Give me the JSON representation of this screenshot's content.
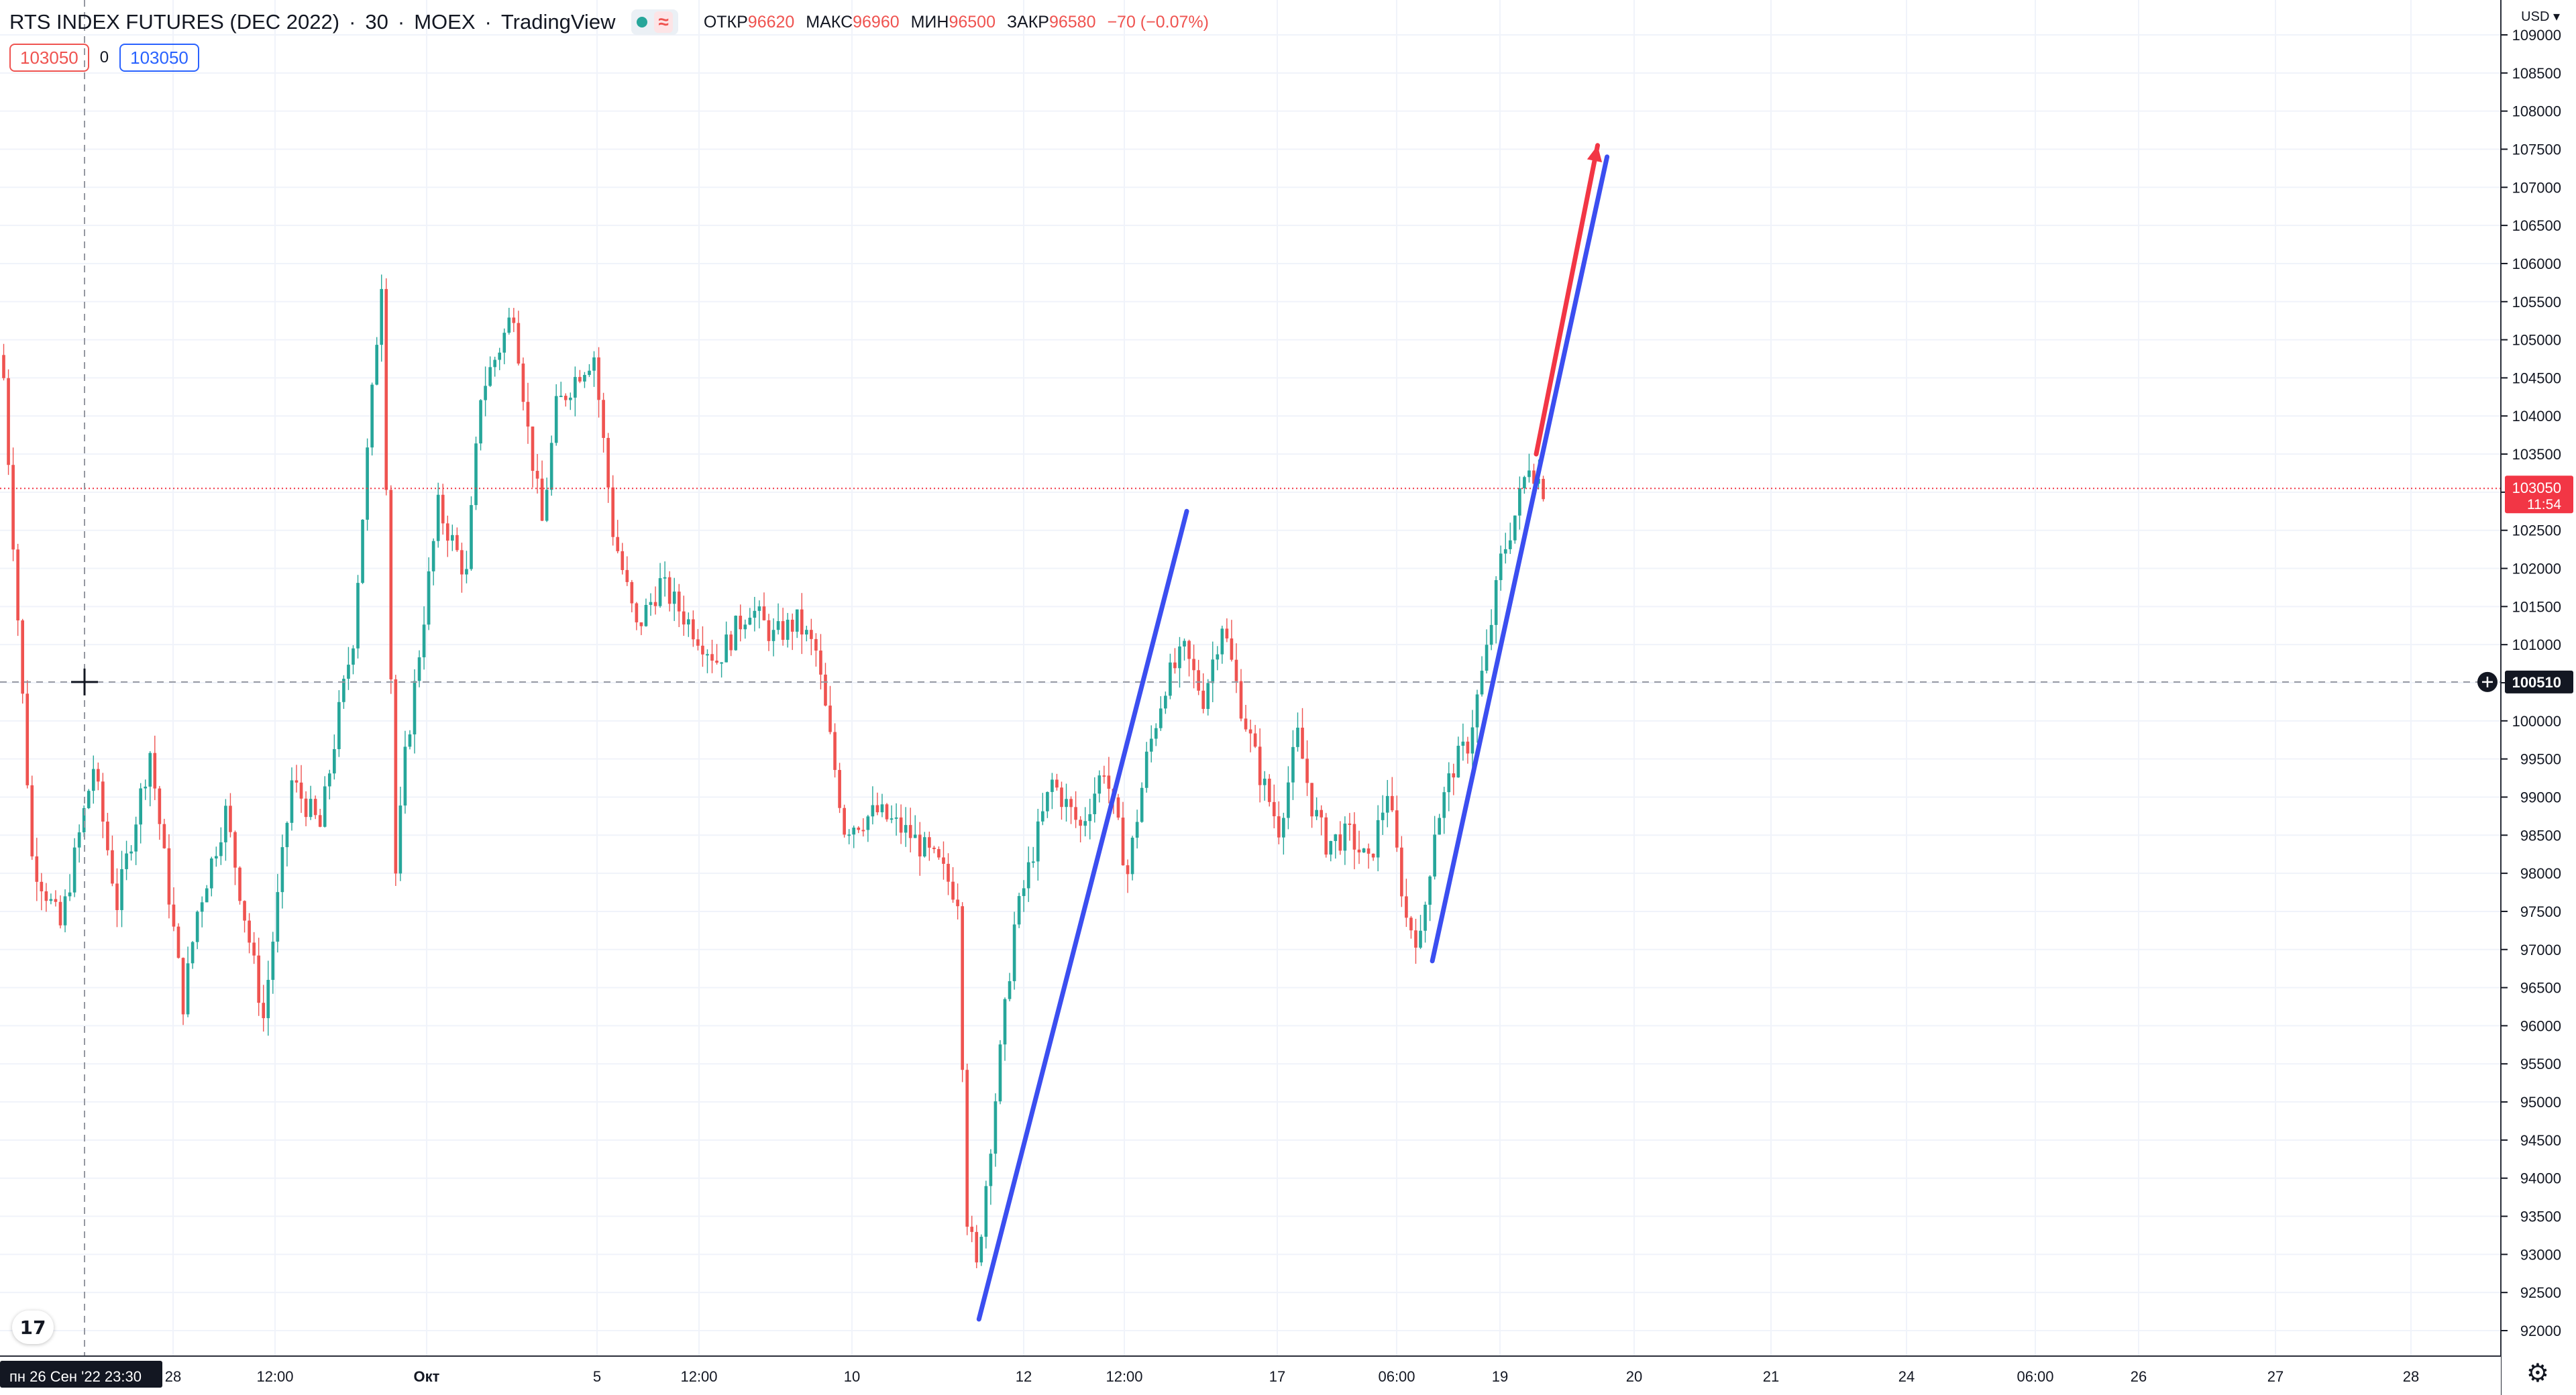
{
  "header": {
    "symbol": "RTS INDEX FUTURES (DEC 2022)",
    "interval": "30",
    "exchange": "MOEX",
    "source": "TradingView",
    "sep": "·",
    "ohlc": {
      "open_label": "ОТКР",
      "open": "96620",
      "high_label": "МАКС",
      "high": "96960",
      "low_label": "МИН",
      "low": "96500",
      "close_label": "ЗАКР",
      "close": "96580",
      "change": "−70 (−0.07%)"
    }
  },
  "order_bar": {
    "sell": "103050",
    "spread": "0",
    "buy": "103050"
  },
  "currency": "USD",
  "price_axis": {
    "min": 91700,
    "max": 109050,
    "step": 500,
    "labels": [
      "109000",
      "108500",
      "108000",
      "107500",
      "107000",
      "106500",
      "106000",
      "105500",
      "105000",
      "104500",
      "104000",
      "103500",
      "103000",
      "102500",
      "102000",
      "101500",
      "101000",
      "100500",
      "100000",
      "99500",
      "99000",
      "98500",
      "98000",
      "97500",
      "97000",
      "96500",
      "96000",
      "95500",
      "95000",
      "94500",
      "94000",
      "93500",
      "93000",
      "92500",
      "92000"
    ]
  },
  "last_price": {
    "price": 103050,
    "label": "103050",
    "countdown": "11:54",
    "color": "#f23645"
  },
  "crosshair": {
    "price": 100510,
    "price_label": "100510",
    "time_label": "пн 26 Сен '22   23:30"
  },
  "time_axis": {
    "labels": [
      "28",
      "12:00",
      "Окт",
      "5",
      "12:00",
      "10",
      "12",
      "12:00",
      "17",
      "06:00",
      "19",
      "20",
      "21",
      "24",
      "06:00",
      "26",
      "27",
      "28"
    ],
    "bold": [
      false,
      false,
      true,
      false,
      false,
      false,
      false,
      false,
      false,
      false,
      false,
      false,
      false,
      false,
      false,
      false,
      false,
      false
    ]
  },
  "colors": {
    "up": "#26a69a",
    "down": "#ef5350",
    "trend_blue": "#3b4ef0",
    "trend_red": "#f23645",
    "grid": "#f0f3fa",
    "text": "#131722"
  },
  "chart_data": {
    "type": "candlestick",
    "title": "RTS INDEX FUTURES (DEC 2022)",
    "interval": "30",
    "x_range": [
      "2022-09-26",
      "2022-10-28"
    ],
    "ylim": [
      91700,
      109050
    ],
    "close_path": [
      [
        0,
        104500
      ],
      [
        6,
        98200
      ],
      [
        12,
        97300
      ],
      [
        19,
        99400
      ],
      [
        24,
        97600
      ],
      [
        31,
        99600
      ],
      [
        38,
        96300
      ],
      [
        41,
        97500
      ],
      [
        47,
        98800
      ],
      [
        55,
        96100
      ],
      [
        61,
        99200
      ],
      [
        67,
        98600
      ],
      [
        71,
        100100
      ],
      [
        74,
        101100
      ],
      [
        77,
        103500
      ],
      [
        80,
        105800
      ],
      [
        83,
        98000
      ],
      [
        85,
        99500
      ],
      [
        92,
        102800
      ],
      [
        98,
        101900
      ],
      [
        101,
        104300
      ],
      [
        105,
        104900
      ],
      [
        108,
        105400
      ],
      [
        111,
        103800
      ],
      [
        114,
        102600
      ],
      [
        117,
        104100
      ],
      [
        122,
        104600
      ],
      [
        125,
        104800
      ],
      [
        129,
        102500
      ],
      [
        134,
        101200
      ],
      [
        139,
        101800
      ],
      [
        145,
        101300
      ],
      [
        151,
        100800
      ],
      [
        158,
        101500
      ],
      [
        163,
        101100
      ],
      [
        168,
        101300
      ],
      [
        172,
        100900
      ],
      [
        178,
        98600
      ],
      [
        185,
        98800
      ],
      [
        192,
        98500
      ],
      [
        198,
        98100
      ],
      [
        202,
        97700
      ],
      [
        204,
        93500
      ],
      [
        206,
        92800
      ],
      [
        209,
        94500
      ],
      [
        214,
        97300
      ],
      [
        218,
        98300
      ],
      [
        222,
        99200
      ],
      [
        228,
        98600
      ],
      [
        233,
        99400
      ],
      [
        238,
        98000
      ],
      [
        242,
        99500
      ],
      [
        246,
        100500
      ],
      [
        250,
        100900
      ],
      [
        254,
        100300
      ],
      [
        258,
        101300
      ],
      [
        262,
        100200
      ],
      [
        266,
        99300
      ],
      [
        270,
        98600
      ],
      [
        274,
        99800
      ],
      [
        277,
        98900
      ],
      [
        280,
        98400
      ],
      [
        285,
        98500
      ],
      [
        289,
        98100
      ],
      [
        293,
        99100
      ],
      [
        297,
        97400
      ],
      [
        300,
        97100
      ],
      [
        303,
        98600
      ],
      [
        307,
        99400
      ],
      [
        310,
        99700
      ],
      [
        314,
        100900
      ],
      [
        317,
        102100
      ],
      [
        320,
        102700
      ],
      [
        323,
        103400
      ],
      [
        326,
        103050
      ]
    ],
    "trend_lines": [
      {
        "color": "blue",
        "from": [
          207,
          92150
        ],
        "to": [
          251,
          102750
        ]
      },
      {
        "color": "blue",
        "from": [
          303,
          96850
        ],
        "to": [
          340,
          107400
        ]
      },
      {
        "color": "red",
        "from": [
          325,
          103500
        ],
        "to": [
          338,
          107550
        ],
        "arrow": true
      }
    ]
  }
}
